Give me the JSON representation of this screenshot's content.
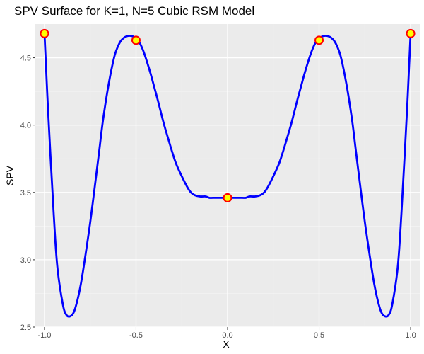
{
  "chart_data": {
    "type": "line",
    "title": "SPV Surface for K=1, N=5 Cubic RSM Model",
    "xlabel": "X",
    "ylabel": "SPV",
    "xlim": [
      -1.05,
      1.05
    ],
    "ylim": [
      2.5,
      4.75
    ],
    "x_ticks": [
      -1.0,
      -0.5,
      0.0,
      0.5,
      1.0
    ],
    "x_tick_labels": [
      "-1.0",
      "-0.5",
      "0.0",
      "0.5",
      "1.0"
    ],
    "y_ticks": [
      2.5,
      3.0,
      3.5,
      4.0,
      4.5
    ],
    "y_tick_labels": [
      "2.5",
      "3.0",
      "3.5",
      "4.0",
      "4.5"
    ],
    "grid": true,
    "series": [
      {
        "color": "#0000ff",
        "x": [
          -1.0,
          -0.98,
          -0.95,
          -0.93,
          -0.9,
          -0.88,
          -0.86,
          -0.84,
          -0.82,
          -0.8,
          -0.78,
          -0.75,
          -0.72,
          -0.7,
          -0.68,
          -0.65,
          -0.62,
          -0.6,
          -0.58,
          -0.55,
          -0.52,
          -0.5,
          -0.48,
          -0.46,
          -0.44,
          -0.42,
          -0.4,
          -0.38,
          -0.35,
          -0.32,
          -0.3,
          -0.28,
          -0.25,
          -0.22,
          -0.2,
          -0.18,
          -0.15,
          -0.12,
          -0.1,
          -0.08,
          -0.05,
          -0.02,
          0.0,
          0.02,
          0.05,
          0.08,
          0.1,
          0.12,
          0.15,
          0.18,
          0.2,
          0.22,
          0.25,
          0.28,
          0.3,
          0.32,
          0.35,
          0.38,
          0.4,
          0.42,
          0.44,
          0.46,
          0.48,
          0.5,
          0.52,
          0.55,
          0.58,
          0.6,
          0.62,
          0.65,
          0.68,
          0.7,
          0.72,
          0.75,
          0.78,
          0.8,
          0.82,
          0.84,
          0.86,
          0.88,
          0.9,
          0.93,
          0.95,
          0.98,
          1.0
        ],
        "y": [
          4.68,
          4.1,
          3.35,
          2.95,
          2.67,
          2.59,
          2.58,
          2.61,
          2.7,
          2.83,
          3.0,
          3.28,
          3.6,
          3.82,
          4.04,
          4.3,
          4.5,
          4.58,
          4.63,
          4.66,
          4.66,
          4.64,
          4.61,
          4.55,
          4.47,
          4.38,
          4.28,
          4.18,
          4.02,
          3.88,
          3.79,
          3.71,
          3.62,
          3.54,
          3.5,
          3.48,
          3.47,
          3.47,
          3.46,
          3.46,
          3.46,
          3.46,
          3.46,
          3.46,
          3.46,
          3.46,
          3.46,
          3.47,
          3.47,
          3.48,
          3.5,
          3.54,
          3.62,
          3.71,
          3.79,
          3.88,
          4.02,
          4.18,
          4.28,
          4.38,
          4.47,
          4.55,
          4.61,
          4.64,
          4.66,
          4.66,
          4.63,
          4.58,
          4.5,
          4.3,
          4.04,
          3.82,
          3.6,
          3.28,
          3.0,
          2.83,
          2.7,
          2.61,
          2.58,
          2.59,
          2.67,
          2.95,
          3.35,
          4.1,
          4.68
        ]
      },
      {
        "color": "#ff0000",
        "fill": "#ffff00",
        "x": [
          -1.0,
          -0.5,
          0.0,
          0.5,
          1.0
        ],
        "y": [
          4.68,
          4.63,
          3.46,
          4.63,
          4.68
        ]
      }
    ]
  }
}
